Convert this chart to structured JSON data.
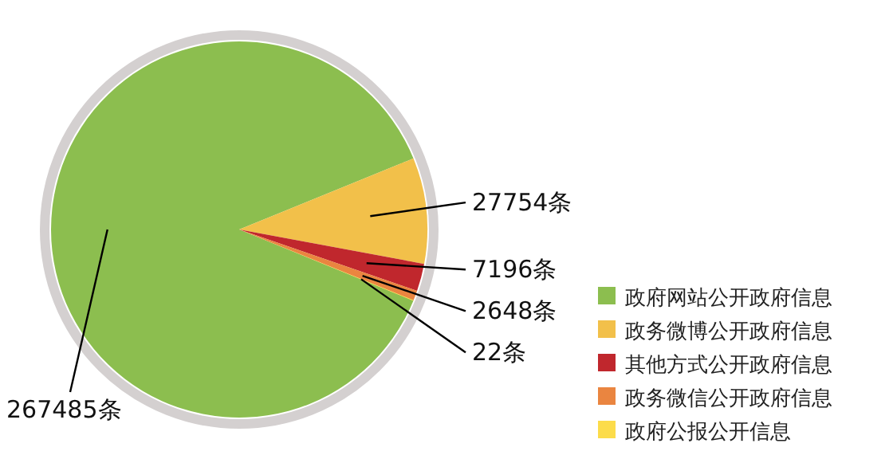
{
  "chart_data": {
    "type": "pie",
    "categories": [
      "政府网站公开政府信息",
      "政务微博公开政府信息",
      "其他方式公开政府信息",
      "政务微信公开政府信息",
      "政府公报公开信息"
    ],
    "values": [
      267485,
      27754,
      7196,
      2648,
      22
    ],
    "colors": [
      "#8cbe4f",
      "#f2c04a",
      "#c0272d",
      "#ea8540",
      "#fcdc4a"
    ],
    "value_labels": [
      "267485条",
      "27754条",
      "7196条",
      "2648条",
      "22条"
    ],
    "legend": "bottom right"
  }
}
